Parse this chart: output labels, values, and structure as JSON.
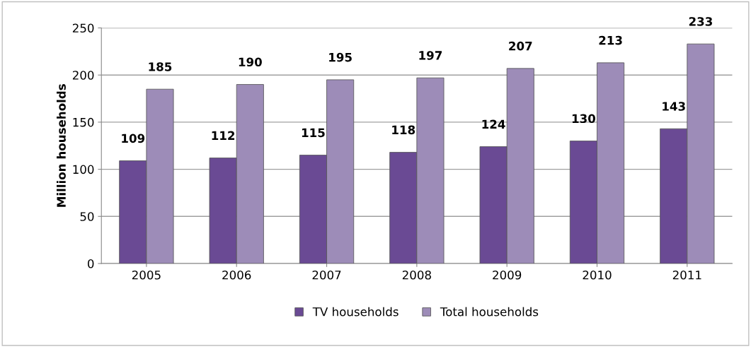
{
  "chart_data": {
    "type": "bar",
    "ylabel": "Million households",
    "categories": [
      "2005",
      "2006",
      "2007",
      "2008",
      "2009",
      "2010",
      "2011"
    ],
    "series": [
      {
        "name": "TV households",
        "color": "#6a4a94",
        "values": [
          109,
          112,
          115,
          118,
          124,
          130,
          143
        ]
      },
      {
        "name": "Total households",
        "color": "#9d8cb8",
        "values": [
          185,
          190,
          195,
          197,
          207,
          213,
          233
        ]
      }
    ],
    "ylim": [
      0,
      250
    ],
    "yticks": [
      0,
      50,
      100,
      150,
      200,
      250
    ],
    "grid": "y",
    "legend": "bottom",
    "data_labels": true
  }
}
